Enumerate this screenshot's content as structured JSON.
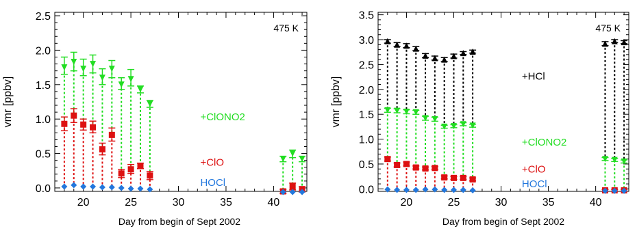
{
  "chart_data": [
    {
      "type": "scatter",
      "panel": "left",
      "annotation": "475 K",
      "xlabel": "Day from begin of Sept 2002",
      "ylabel": "vmr [ppbv]",
      "xlim": [
        17,
        43.5
      ],
      "ylim": [
        -0.05,
        2.55
      ],
      "xticks": [
        20,
        25,
        30,
        35,
        40
      ],
      "yticks": [
        "0.0",
        "0.5",
        "1.0",
        "1.5",
        "2.0",
        "2.5"
      ],
      "series": [
        {
          "name": "+ClONO2",
          "color": "#22dd22",
          "marker": "triangle-down",
          "points": [
            {
              "x": 18,
              "y": 1.75,
              "lo": 1.65,
              "hi": 1.9
            },
            {
              "x": 19,
              "y": 1.83,
              "lo": 1.7,
              "hi": 1.97
            },
            {
              "x": 20,
              "y": 1.73,
              "lo": 1.63,
              "hi": 1.87
            },
            {
              "x": 21,
              "y": 1.8,
              "lo": 1.67,
              "hi": 1.93
            },
            {
              "x": 22,
              "y": 1.6,
              "lo": 1.5,
              "hi": 1.73
            },
            {
              "x": 23,
              "y": 1.73,
              "lo": 1.6,
              "hi": 1.85
            },
            {
              "x": 24,
              "y": 1.5,
              "lo": 1.43,
              "hi": 1.6
            },
            {
              "x": 25,
              "y": 1.58,
              "lo": 1.48,
              "hi": 1.72
            },
            {
              "x": 26,
              "y": 1.43,
              "lo": 1.38,
              "hi": 1.48
            },
            {
              "x": 27,
              "y": 1.22,
              "lo": 1.17,
              "hi": 1.27
            },
            {
              "x": 41,
              "y": 0.42,
              "lo": 0.38,
              "hi": 0.46
            },
            {
              "x": 42,
              "y": 0.5,
              "lo": 0.44,
              "hi": 0.55
            },
            {
              "x": 43,
              "y": 0.42,
              "lo": 0.38,
              "hi": 0.46
            }
          ]
        },
        {
          "name": "+ClO",
          "color": "#dd1111",
          "marker": "square",
          "points": [
            {
              "x": 18,
              "y": 0.93,
              "lo": 0.83,
              "hi": 1.03
            },
            {
              "x": 19,
              "y": 1.05,
              "lo": 0.95,
              "hi": 1.15
            },
            {
              "x": 20,
              "y": 0.92,
              "lo": 0.84,
              "hi": 1.0
            },
            {
              "x": 21,
              "y": 0.88,
              "lo": 0.8,
              "hi": 0.97
            },
            {
              "x": 22,
              "y": 0.56,
              "lo": 0.48,
              "hi": 0.65
            },
            {
              "x": 23,
              "y": 0.77,
              "lo": 0.68,
              "hi": 0.87
            },
            {
              "x": 24,
              "y": 0.21,
              "lo": 0.15,
              "hi": 0.27
            },
            {
              "x": 25,
              "y": 0.27,
              "lo": 0.21,
              "hi": 0.34
            },
            {
              "x": 26,
              "y": 0.32,
              "lo": 0.28,
              "hi": 0.36
            },
            {
              "x": 27,
              "y": 0.18,
              "lo": 0.12,
              "hi": 0.24
            },
            {
              "x": 41,
              "y": -0.05,
              "lo": -0.08,
              "hi": -0.02
            },
            {
              "x": 42,
              "y": 0.02,
              "lo": -0.03,
              "hi": 0.07
            },
            {
              "x": 43,
              "y": -0.02,
              "lo": -0.06,
              "hi": 0.02
            }
          ]
        },
        {
          "name": "HOCl",
          "color": "#2277dd",
          "marker": "diamond",
          "points": [
            {
              "x": 18,
              "y": 0.02
            },
            {
              "x": 19,
              "y": 0.04
            },
            {
              "x": 20,
              "y": 0.02
            },
            {
              "x": 21,
              "y": 0.02
            },
            {
              "x": 22,
              "y": 0.01
            },
            {
              "x": 23,
              "y": 0.01
            },
            {
              "x": 24,
              "y": 0.0
            },
            {
              "x": 25,
              "y": -0.01
            },
            {
              "x": 26,
              "y": -0.01
            },
            {
              "x": 27,
              "y": -0.02
            },
            {
              "x": 41,
              "y": -0.06
            },
            {
              "x": 42,
              "y": -0.06
            },
            {
              "x": 43,
              "y": -0.06
            }
          ]
        }
      ],
      "labels": [
        {
          "text": "+ClONO2",
          "color": "#22dd22",
          "x": 32.3,
          "y": 0.98
        },
        {
          "text": "+ClO",
          "color": "#dd1111",
          "x": 32.3,
          "y": 0.32
        },
        {
          "text": "HOCl",
          "color": "#2277dd",
          "x": 32.3,
          "y": 0.03
        }
      ]
    },
    {
      "type": "scatter",
      "panel": "right",
      "annotation": "475 K",
      "xlabel": "Day from begin of Sept 2002",
      "ylabel": "vmr [ppbv]",
      "xlim": [
        17,
        43.5
      ],
      "ylim": [
        -0.05,
        3.55
      ],
      "xticks": [
        20,
        25,
        30,
        35,
        40
      ],
      "yticks": [
        "0.0",
        "0.5",
        "1.0",
        "1.5",
        "2.0",
        "2.5",
        "3.0",
        "3.5"
      ],
      "series": [
        {
          "name": "+HCl",
          "color": "#000000",
          "marker": "triangle-up",
          "points": [
            {
              "x": 18,
              "y": 2.97,
              "lo": 2.93,
              "hi": 3.0
            },
            {
              "x": 19,
              "y": 2.9,
              "lo": 2.86,
              "hi": 2.94
            },
            {
              "x": 20,
              "y": 2.88,
              "lo": 2.84,
              "hi": 2.92
            },
            {
              "x": 21,
              "y": 2.82,
              "lo": 2.78,
              "hi": 2.86
            },
            {
              "x": 22,
              "y": 2.68,
              "lo": 2.64,
              "hi": 2.72
            },
            {
              "x": 23,
              "y": 2.63,
              "lo": 2.59,
              "hi": 2.67
            },
            {
              "x": 24,
              "y": 2.6,
              "lo": 2.56,
              "hi": 2.64
            },
            {
              "x": 25,
              "y": 2.67,
              "lo": 2.63,
              "hi": 2.71
            },
            {
              "x": 26,
              "y": 2.73,
              "lo": 2.7,
              "hi": 2.76
            },
            {
              "x": 27,
              "y": 2.76,
              "lo": 2.73,
              "hi": 2.79
            },
            {
              "x": 41,
              "y": 2.92,
              "lo": 2.88,
              "hi": 2.96
            },
            {
              "x": 42,
              "y": 2.97,
              "lo": 2.94,
              "hi": 3.0
            },
            {
              "x": 43,
              "y": 2.95,
              "lo": 2.92,
              "hi": 2.98
            }
          ]
        },
        {
          "name": "+ClONO2",
          "color": "#22dd22",
          "marker": "triangle-down",
          "points": [
            {
              "x": 18,
              "y": 1.58,
              "lo": 1.54,
              "hi": 1.62
            },
            {
              "x": 19,
              "y": 1.57,
              "lo": 1.53,
              "hi": 1.61
            },
            {
              "x": 20,
              "y": 1.55,
              "lo": 1.51,
              "hi": 1.59
            },
            {
              "x": 21,
              "y": 1.54,
              "lo": 1.5,
              "hi": 1.58
            },
            {
              "x": 22,
              "y": 1.42,
              "lo": 1.38,
              "hi": 1.46
            },
            {
              "x": 23,
              "y": 1.4,
              "lo": 1.36,
              "hi": 1.44
            },
            {
              "x": 24,
              "y": 1.25,
              "lo": 1.22,
              "hi": 1.28
            },
            {
              "x": 25,
              "y": 1.26,
              "lo": 1.23,
              "hi": 1.29
            },
            {
              "x": 26,
              "y": 1.3,
              "lo": 1.27,
              "hi": 1.33
            },
            {
              "x": 27,
              "y": 1.27,
              "lo": 1.24,
              "hi": 1.3
            },
            {
              "x": 41,
              "y": 0.6,
              "lo": 0.57,
              "hi": 0.63
            },
            {
              "x": 42,
              "y": 0.58,
              "lo": 0.55,
              "hi": 0.61
            },
            {
              "x": 43,
              "y": 0.55,
              "lo": 0.52,
              "hi": 0.58
            }
          ]
        },
        {
          "name": "+ClO",
          "color": "#dd1111",
          "marker": "square",
          "points": [
            {
              "x": 18,
              "y": 0.6,
              "lo": 0.56,
              "hi": 0.64
            },
            {
              "x": 19,
              "y": 0.48,
              "lo": 0.44,
              "hi": 0.52
            },
            {
              "x": 20,
              "y": 0.5,
              "lo": 0.46,
              "hi": 0.54
            },
            {
              "x": 21,
              "y": 0.43,
              "lo": 0.4,
              "hi": 0.46
            },
            {
              "x": 22,
              "y": 0.41,
              "lo": 0.38,
              "hi": 0.44
            },
            {
              "x": 23,
              "y": 0.42,
              "lo": 0.39,
              "hi": 0.45
            },
            {
              "x": 24,
              "y": 0.23,
              "lo": 0.2,
              "hi": 0.26
            },
            {
              "x": 25,
              "y": 0.22,
              "lo": 0.19,
              "hi": 0.25
            },
            {
              "x": 26,
              "y": 0.22,
              "lo": 0.19,
              "hi": 0.25
            },
            {
              "x": 27,
              "y": 0.19,
              "lo": 0.16,
              "hi": 0.22
            },
            {
              "x": 41,
              "y": -0.03,
              "lo": -0.05,
              "hi": -0.01
            },
            {
              "x": 42,
              "y": -0.03,
              "lo": -0.05,
              "hi": -0.01
            },
            {
              "x": 43,
              "y": -0.03,
              "lo": -0.05,
              "hi": -0.01
            }
          ]
        },
        {
          "name": "HOCl",
          "color": "#2277dd",
          "marker": "diamond",
          "points": [
            {
              "x": 18,
              "y": -0.01
            },
            {
              "x": 19,
              "y": -0.02
            },
            {
              "x": 20,
              "y": -0.02
            },
            {
              "x": 21,
              "y": -0.02
            },
            {
              "x": 22,
              "y": -0.01
            },
            {
              "x": 23,
              "y": -0.01
            },
            {
              "x": 24,
              "y": -0.02
            },
            {
              "x": 25,
              "y": -0.02
            },
            {
              "x": 26,
              "y": -0.02
            },
            {
              "x": 27,
              "y": -0.03
            },
            {
              "x": 41,
              "y": -0.04
            },
            {
              "x": 42,
              "y": -0.04
            },
            {
              "x": 43,
              "y": -0.04
            }
          ]
        }
      ],
      "labels": [
        {
          "text": "+HCl",
          "color": "#000000",
          "x": 32.2,
          "y": 2.2
        },
        {
          "text": "+ClONO2",
          "color": "#22dd22",
          "x": 32.2,
          "y": 0.87
        },
        {
          "text": "+ClO",
          "color": "#dd1111",
          "x": 32.2,
          "y": 0.33
        },
        {
          "text": "HOCl",
          "color": "#2277dd",
          "x": 32.2,
          "y": 0.03
        }
      ]
    }
  ]
}
